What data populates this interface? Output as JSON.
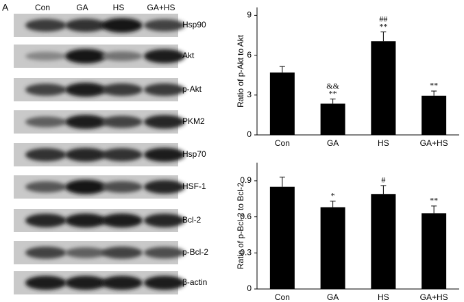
{
  "panel_label": "A",
  "lanes": [
    "Con",
    "GA",
    "HS",
    "GA+HS"
  ],
  "blots": [
    "Hsp90",
    "Akt",
    "p-Akt",
    "PKM2",
    "Hsp70",
    "HSF-1",
    "Bcl-2",
    "p-Bcl-2",
    "β-actin"
  ],
  "chart_data": [
    {
      "type": "bar",
      "y_label": "Ratio of p-Akt to Akt",
      "categories": [
        "Con",
        "GA",
        "HS",
        "GA+HS"
      ],
      "values": [
        4.7,
        2.35,
        7.05,
        2.95
      ],
      "errors": [
        0.45,
        0.35,
        0.7,
        0.35
      ],
      "annotations": [
        [],
        [
          "&&",
          "**"
        ],
        [
          "##",
          "**"
        ],
        [
          "**"
        ]
      ],
      "color": "#000000",
      "ylim": [
        0,
        9.6
      ],
      "yticks": [
        0,
        3,
        6,
        9
      ]
    },
    {
      "type": "bar",
      "y_label": "Ratio of p-Bcl-2 to Bcl-2",
      "categories": [
        "Con",
        "GA",
        "HS",
        "GA+HS"
      ],
      "values": [
        0.85,
        0.68,
        0.79,
        0.63
      ],
      "errors": [
        0.08,
        0.05,
        0.07,
        0.06
      ],
      "annotations": [
        [],
        [
          "*"
        ],
        [
          "#"
        ],
        [
          "**"
        ]
      ],
      "color": "#000000",
      "ylim": [
        0,
        1.05
      ],
      "yticks": [
        0,
        0.3,
        0.6,
        0.9
      ]
    }
  ]
}
